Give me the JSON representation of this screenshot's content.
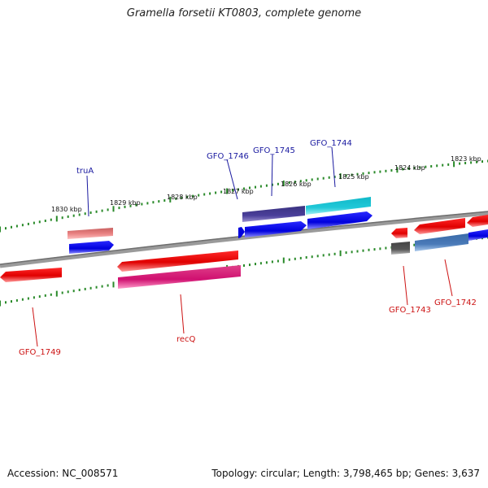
{
  "title": "Gramella forsetii KT0803, complete genome",
  "footer": {
    "accession": "Accession: NC_008571",
    "summary": "Topology: circular; Length: 3,798,465 bp; Genes: 3,637"
  },
  "ruler_labels": [
    "1830 kbp",
    "1829 kbp",
    "1828 kbp",
    "1827 kbp",
    "1826 kbp",
    "1825 kbp",
    "1824 kbp",
    "1823 kbp"
  ],
  "genes": {
    "trua": "truA",
    "gfo_1746": "GFO_1746",
    "gfo_1745": "GFO_1745",
    "gfo_1744": "GFO_1744",
    "gfo_1749": "GFO_1749",
    "recq": "recQ",
    "gfo_1743": "GFO_1743",
    "gfo_1742": "GFO_1742"
  },
  "colors": {
    "forward_label": "#1a1aa0",
    "reverse_label": "#cc1111",
    "tick": "#2a8a2a",
    "backbone": "#888888"
  }
}
